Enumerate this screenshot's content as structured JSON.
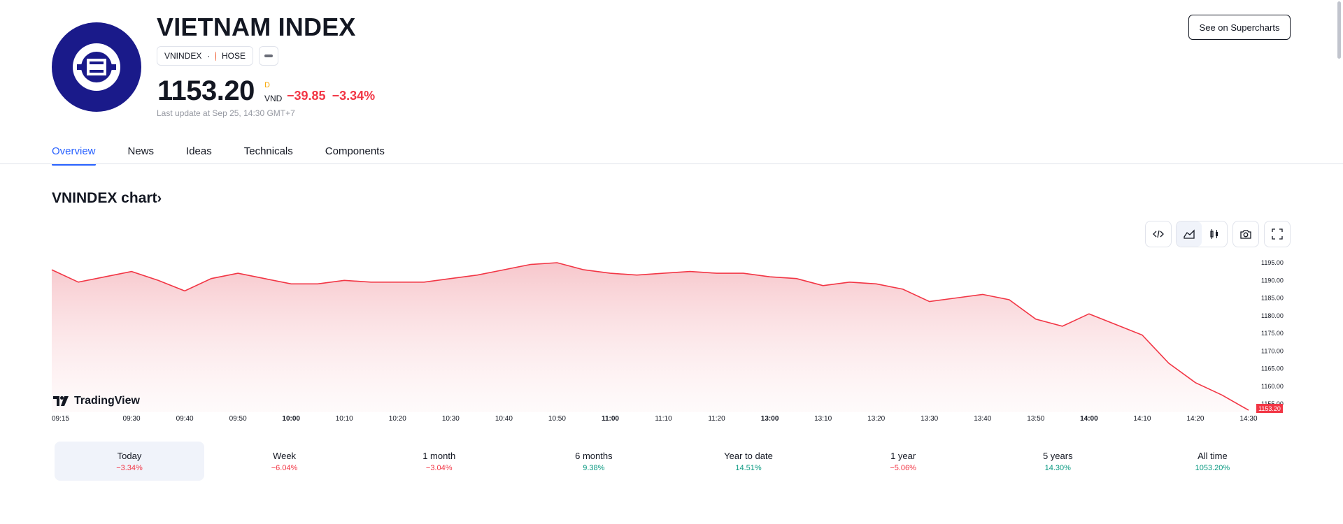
{
  "header": {
    "title": "VIETNAM INDEX",
    "symbol": "VNINDEX",
    "separator": "·",
    "exchange": "HOSE",
    "price": "1153.20",
    "price_flag": "D",
    "currency": "VND",
    "change": "−39.85",
    "change_pct": "−3.34%",
    "last_update": "Last update at Sep 25, 14:30 GMT+7",
    "see_button": "See on Supercharts"
  },
  "tabs": [
    {
      "label": "Overview",
      "active": true
    },
    {
      "label": "News",
      "active": false
    },
    {
      "label": "Ideas",
      "active": false
    },
    {
      "label": "Technicals",
      "active": false
    },
    {
      "label": "Components",
      "active": false
    }
  ],
  "chart_section": {
    "heading": "VNINDEX chart",
    "chevron": "›",
    "brand": "TradingView",
    "last_price_tag": "1153.20",
    "toolbar_icons": [
      "embed-icon",
      "area-chart-icon",
      "candles-icon",
      "camera-icon",
      "fullscreen-icon"
    ]
  },
  "chart_data": {
    "type": "area",
    "x": [
      "09:15",
      "09:20",
      "09:25",
      "09:30",
      "09:35",
      "09:40",
      "09:45",
      "09:50",
      "09:55",
      "10:00",
      "10:05",
      "10:10",
      "10:15",
      "10:20",
      "10:25",
      "10:30",
      "10:35",
      "10:40",
      "10:45",
      "10:50",
      "10:55",
      "11:00",
      "11:05",
      "11:10",
      "11:15",
      "11:20",
      "11:25",
      "13:00",
      "13:05",
      "13:10",
      "13:15",
      "13:20",
      "13:25",
      "13:30",
      "13:35",
      "13:40",
      "13:45",
      "13:50",
      "13:55",
      "14:00",
      "14:05",
      "14:10",
      "14:15",
      "14:20",
      "14:25",
      "14:30"
    ],
    "y": [
      1193.0,
      1189.5,
      1191.0,
      1192.5,
      1190.0,
      1187.0,
      1190.5,
      1192.0,
      1190.5,
      1189.0,
      1189.0,
      1190.0,
      1189.5,
      1189.5,
      1189.5,
      1190.5,
      1191.5,
      1193.0,
      1194.5,
      1195.0,
      1193.0,
      1192.0,
      1191.5,
      1192.0,
      1192.5,
      1192.0,
      1192.0,
      1191.0,
      1190.5,
      1188.5,
      1189.5,
      1189.0,
      1187.5,
      1184.0,
      1185.0,
      1186.0,
      1184.5,
      1179.0,
      1177.0,
      1180.5,
      1177.5,
      1174.5,
      1166.5,
      1161.0,
      1157.5,
      1153.2
    ],
    "ylim": [
      1155,
      1195
    ],
    "y_ticks": [
      "1195.00",
      "1190.00",
      "1185.00",
      "1180.00",
      "1175.00",
      "1170.00",
      "1165.00",
      "1160.00",
      "1155.00"
    ],
    "x_tick_labels": [
      {
        "label": "09:15",
        "bold": false
      },
      {
        "label": "09:30",
        "bold": false
      },
      {
        "label": "09:40",
        "bold": false
      },
      {
        "label": "09:50",
        "bold": false
      },
      {
        "label": "10:00",
        "bold": true
      },
      {
        "label": "10:10",
        "bold": false
      },
      {
        "label": "10:20",
        "bold": false
      },
      {
        "label": "10:30",
        "bold": false
      },
      {
        "label": "10:40",
        "bold": false
      },
      {
        "label": "10:50",
        "bold": false
      },
      {
        "label": "11:00",
        "bold": true
      },
      {
        "label": "11:10",
        "bold": false
      },
      {
        "label": "11:20",
        "bold": false
      },
      {
        "label": "13:00",
        "bold": true
      },
      {
        "label": "13:10",
        "bold": false
      },
      {
        "label": "13:20",
        "bold": false
      },
      {
        "label": "13:30",
        "bold": false
      },
      {
        "label": "13:40",
        "bold": false
      },
      {
        "label": "13:50",
        "bold": false
      },
      {
        "label": "14:00",
        "bold": true
      },
      {
        "label": "14:10",
        "bold": false
      },
      {
        "label": "14:20",
        "bold": false
      },
      {
        "label": "14:30",
        "bold": false
      }
    ],
    "line_color": "#f23645",
    "fill_color": "#f7c7cc",
    "grid": false
  },
  "periods": [
    {
      "label": "Today",
      "value": "−3.34%",
      "sign": "neg",
      "active": true
    },
    {
      "label": "Week",
      "value": "−6.04%",
      "sign": "neg",
      "active": false
    },
    {
      "label": "1 month",
      "value": "−3.04%",
      "sign": "neg",
      "active": false
    },
    {
      "label": "6 months",
      "value": "9.38%",
      "sign": "pos",
      "active": false
    },
    {
      "label": "Year to date",
      "value": "14.51%",
      "sign": "pos",
      "active": false
    },
    {
      "label": "1 year",
      "value": "−5.06%",
      "sign": "neg",
      "active": false
    },
    {
      "label": "5 years",
      "value": "14.30%",
      "sign": "pos",
      "active": false
    },
    {
      "label": "All time",
      "value": "1053.20%",
      "sign": "pos",
      "active": false
    }
  ],
  "colors": {
    "accent": "#2962ff",
    "negative": "#f23645",
    "positive": "#089981",
    "logo_bg": "#1a1a8a"
  }
}
